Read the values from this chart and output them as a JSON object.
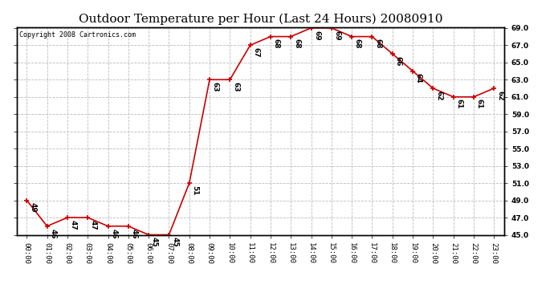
{
  "title": "Outdoor Temperature per Hour (Last 24 Hours) 20080910",
  "copyright": "Copyright 2008 Cartronics.com",
  "hours": [
    "00:00",
    "01:00",
    "02:00",
    "03:00",
    "04:00",
    "05:00",
    "06:00",
    "07:00",
    "08:00",
    "09:00",
    "10:00",
    "11:00",
    "12:00",
    "13:00",
    "14:00",
    "15:00",
    "16:00",
    "17:00",
    "18:00",
    "19:00",
    "20:00",
    "21:00",
    "22:00",
    "23:00"
  ],
  "temps": [
    49,
    46,
    47,
    47,
    46,
    46,
    45,
    45,
    51,
    63,
    63,
    67,
    68,
    68,
    69,
    69,
    68,
    68,
    66,
    64,
    62,
    61,
    61,
    62
  ],
  "line_color": "#cc0000",
  "marker_color": "#cc0000",
  "bg_color": "#ffffff",
  "grid_color": "#bbbbbb",
  "ylim_min": 45.0,
  "ylim_max": 69.0,
  "ytick_step": 2.0,
  "title_fontsize": 11,
  "label_fontsize": 6.5,
  "annotation_fontsize": 6.5,
  "copyright_fontsize": 6
}
